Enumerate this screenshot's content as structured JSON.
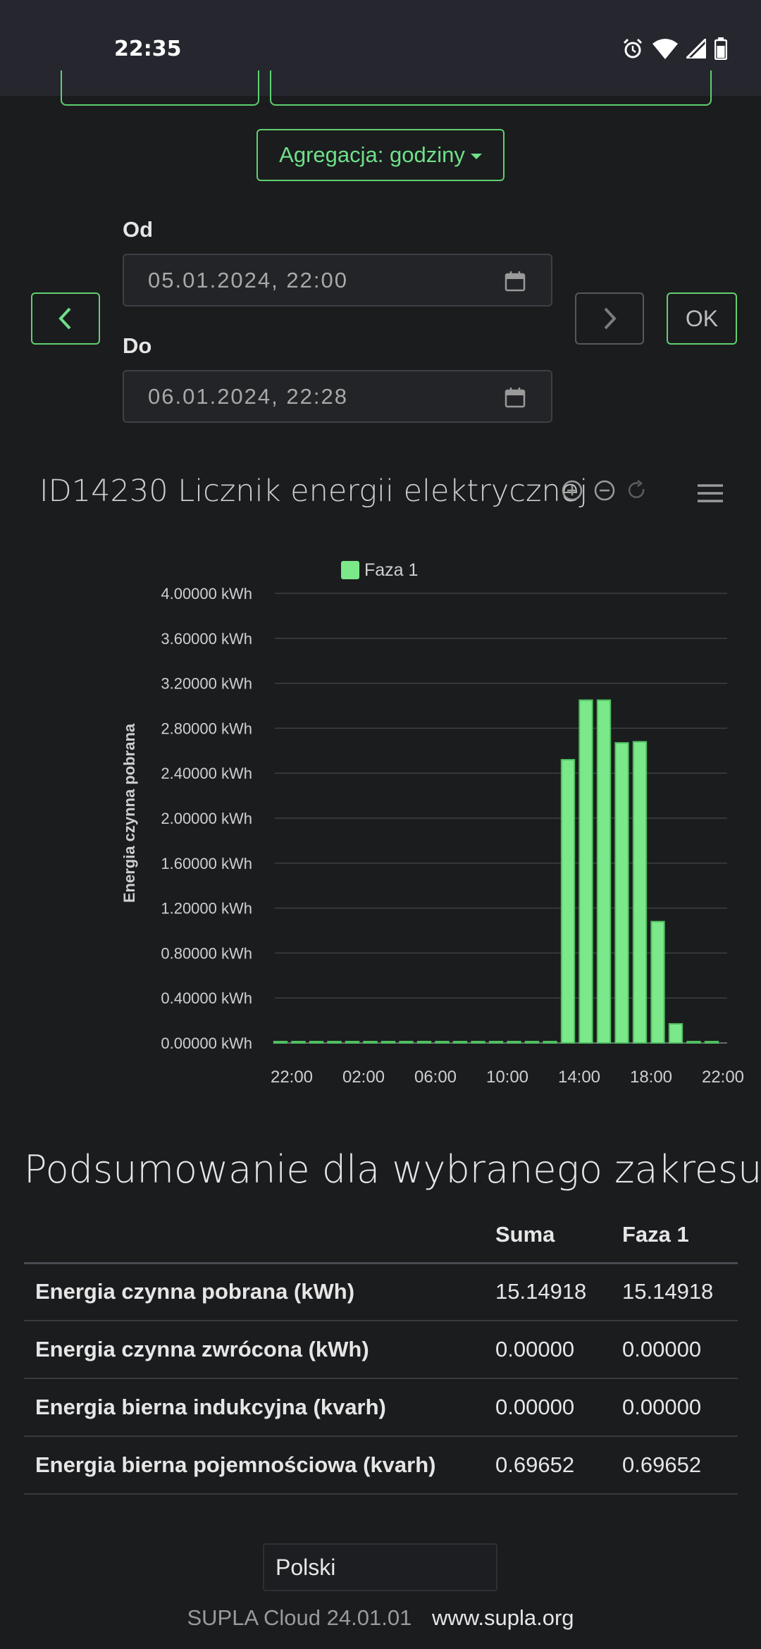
{
  "status_bar": {
    "time": "22:35",
    "icons": [
      "alarm-icon",
      "wifi-icon",
      "signal-icon",
      "battery-icon"
    ]
  },
  "controls": {
    "aggregation_label": "Agregacja: godziny",
    "from_label": "Od",
    "from_value": "05.01.2024, 22:00",
    "to_label": "Do",
    "to_value": "06.01.2024, 22:28",
    "ok_label": "OK"
  },
  "chart": {
    "title": "ID14230 Licznik energii elektrycznej",
    "tools": [
      "zoom-in-icon",
      "zoom-out-icon",
      "reset-zoom-icon",
      "menu-icon"
    ]
  },
  "chart_data": {
    "type": "bar",
    "title": "ID14230 Licznik energii elektrycznej",
    "ylabel": "Energia czynna pobrana",
    "xlabel": "",
    "legend": "top",
    "grid": true,
    "ylim": [
      0,
      4
    ],
    "y_unit": "kWh",
    "y_ticks": [
      "0.00000 kWh",
      "0.40000 kWh",
      "0.80000 kWh",
      "1.20000 kWh",
      "1.60000 kWh",
      "2.00000 kWh",
      "2.40000 kWh",
      "2.80000 kWh",
      "3.20000 kWh",
      "3.60000 kWh",
      "4.00000 kWh"
    ],
    "x_ticks": [
      "22:00",
      "02:00",
      "06:00",
      "10:00",
      "14:00",
      "18:00",
      "22:00"
    ],
    "categories": [
      "22:00",
      "23:00",
      "00:00",
      "01:00",
      "02:00",
      "03:00",
      "04:00",
      "05:00",
      "06:00",
      "07:00",
      "08:00",
      "09:00",
      "10:00",
      "11:00",
      "12:00",
      "13:00",
      "14:00",
      "15:00",
      "16:00",
      "17:00",
      "18:00",
      "19:00",
      "20:00",
      "21:00",
      "22:00"
    ],
    "series": [
      {
        "name": "Faza 1",
        "color": "#7be88a",
        "values": [
          0,
          0,
          0,
          0,
          0,
          0,
          0,
          0,
          0,
          0,
          0,
          0,
          0,
          0,
          0,
          0,
          2.52,
          3.05,
          3.05,
          2.67,
          2.68,
          1.08,
          0.17,
          0,
          0
        ]
      }
    ]
  },
  "summary": {
    "title": "Podsumowanie dla wybranego zakresu",
    "headers": [
      "",
      "Suma",
      "Faza 1"
    ],
    "rows": [
      {
        "label": "Energia czynna pobrana (kWh)",
        "sum": "15.14918",
        "phase1": "15.14918"
      },
      {
        "label": "Energia czynna zwrócona (kWh)",
        "sum": "0.00000",
        "phase1": "0.00000"
      },
      {
        "label": "Energia bierna indukcyjna (kvarh)",
        "sum": "0.00000",
        "phase1": "0.00000"
      },
      {
        "label": "Energia bierna pojemnościowa (kvarh)",
        "sum": "0.69652",
        "phase1": "0.69652"
      }
    ]
  },
  "footer": {
    "language": "Polski",
    "version": "SUPLA Cloud 24.01.01",
    "link": "www.supla.org"
  },
  "colors": {
    "accent": "#5fd070",
    "background": "#1b1c1e",
    "status_bar": "#26272e"
  }
}
